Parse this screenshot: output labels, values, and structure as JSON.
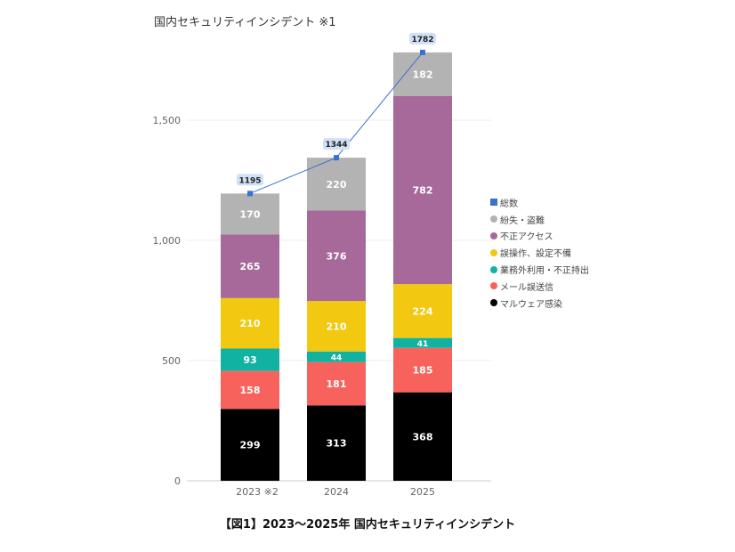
{
  "chart_data": {
    "type": "bar",
    "stacked": true,
    "title": "国内セキュリティインシデント ※1",
    "caption": "【図1】2023～2025年 国内セキュリティインシデント",
    "categories": [
      "2023 ※2",
      "2024",
      "2025"
    ],
    "ylim": [
      0,
      1800
    ],
    "yticks": [
      0,
      500,
      1000,
      1500
    ],
    "ytick_labels": [
      "0",
      "500",
      "1,000",
      "1,500"
    ],
    "grid": true,
    "legend_position": "right",
    "series": [
      {
        "name": "マルウェア感染",
        "values": [
          299,
          313,
          368
        ],
        "color": "#000000",
        "label_color": "#ffffff"
      },
      {
        "name": "メール誤送信",
        "values": [
          158,
          181,
          185
        ],
        "color": "#f8625c",
        "label_color": "#ffffff"
      },
      {
        "name": "業務外利用・不正持出",
        "values": [
          93,
          44,
          41
        ],
        "color": "#12b2a2",
        "label_color": "#ffffff"
      },
      {
        "name": "誤操作、設定不備",
        "values": [
          210,
          210,
          224
        ],
        "color": "#f2c811",
        "label_color": "#ffffff"
      },
      {
        "name": "不正アクセス",
        "values": [
          265,
          376,
          782
        ],
        "color": "#a66999",
        "label_color": "#ffffff"
      },
      {
        "name": "紛失・盗難",
        "values": [
          170,
          220,
          182
        ],
        "color": "#b3b3b3",
        "label_color": "#ffffff"
      }
    ],
    "total": {
      "name": "総数",
      "type": "line",
      "values": [
        1195,
        1344,
        1782
      ],
      "color": "#3a70d4"
    }
  }
}
